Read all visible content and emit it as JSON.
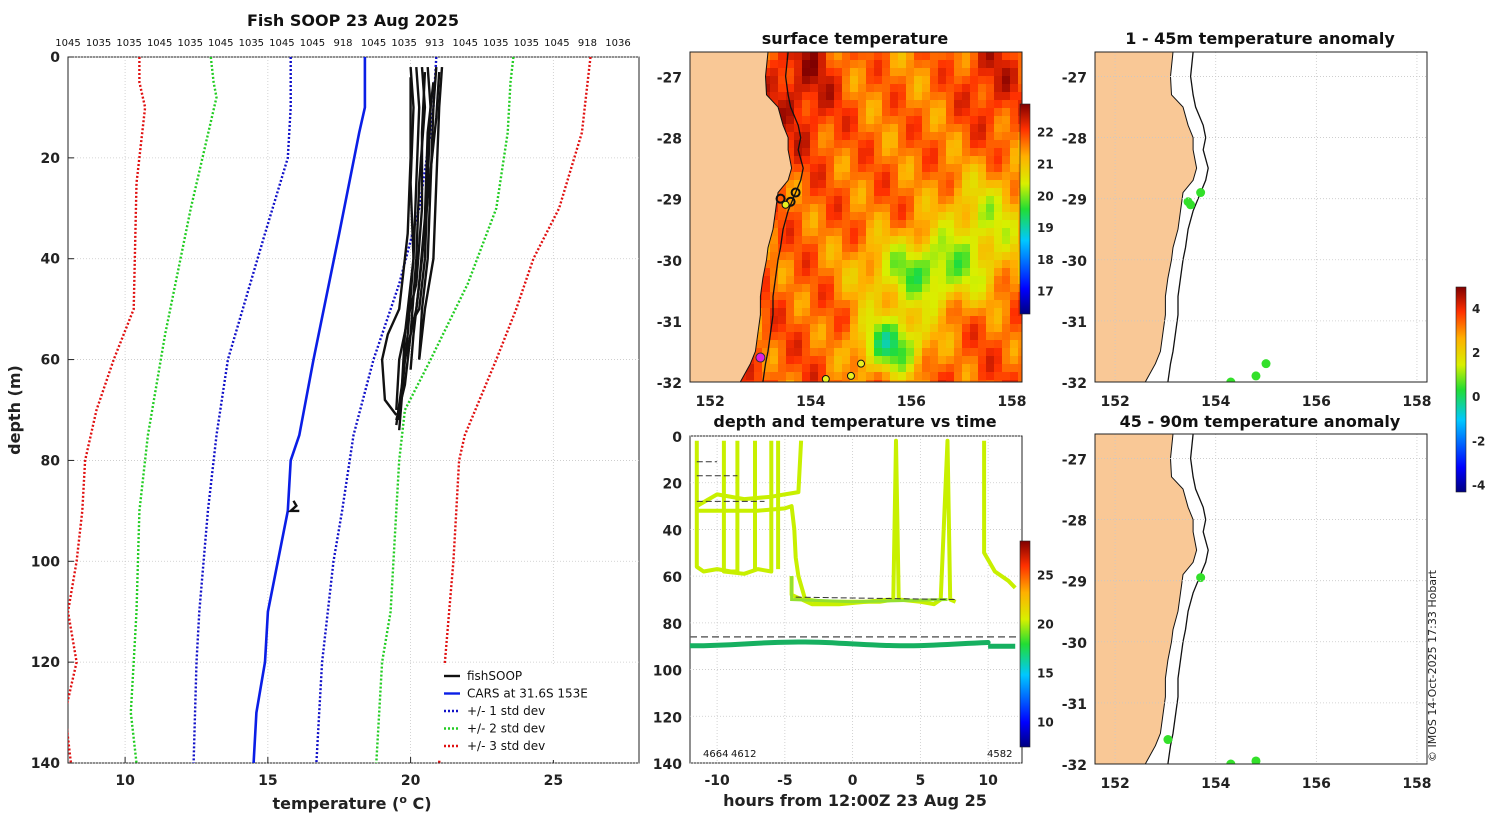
{
  "copyright": "© IMOS 14-Oct-2025 17:33 Hobart",
  "colors": {
    "land": "#f9c896",
    "grid": "#c8c8c8",
    "black": "#111111",
    "cars": "#0a1ee6",
    "std1": "#1010c8",
    "std2": "#22cc22",
    "std3": "#e01010",
    "track_profile": "#c8f000",
    "track_bottom": "#16b060",
    "magenta": "#e020e0",
    "yellow_dot": "#e8f020",
    "anom_green": "#33e02a"
  },
  "chart_data": [
    {
      "id": "profile",
      "type": "line",
      "title": "Fish SOOP 23 Aug 2025",
      "xlabel": "temperature (o C)",
      "ylabel": "depth (m)",
      "xlim": [
        8,
        28
      ],
      "ylim": [
        0,
        140
      ],
      "xticks": [
        "10",
        "15",
        "20",
        "25"
      ],
      "yticks": [
        "0",
        "20",
        "40",
        "60",
        "80",
        "100",
        "120",
        "140"
      ],
      "top_labels": [
        "1045",
        "1035",
        "1035",
        "1045",
        "1035",
        "1045",
        "1035",
        "1045",
        "1045",
        "918",
        "1045",
        "1035",
        "913",
        "1045",
        "1035",
        "1035",
        "1045",
        "918",
        "1036"
      ],
      "legend": [
        "fishSOOP",
        "CARS at 31.6S 153E",
        "+/- 1 std dev",
        "+/- 2 std dev",
        "+/- 3 std dev"
      ],
      "series": [
        {
          "name": "CARS at 31.6S 153E",
          "style": "solid",
          "color": "#0a1ee6",
          "points": [
            [
              18.4,
              0
            ],
            [
              18.4,
              10
            ],
            [
              18.2,
              15
            ],
            [
              17.5,
              35
            ],
            [
              16.6,
              60
            ],
            [
              16.1,
              75
            ],
            [
              15.8,
              80
            ],
            [
              15.7,
              90
            ],
            [
              15.0,
              110
            ],
            [
              14.9,
              120
            ],
            [
              14.6,
              130
            ],
            [
              14.5,
              140
            ]
          ]
        },
        {
          "name": "+1 std",
          "style": "dot",
          "color": "#1010c8",
          "points": [
            [
              20.9,
              0
            ],
            [
              20.8,
              10
            ],
            [
              20.7,
              15
            ],
            [
              20.3,
              30
            ],
            [
              19.6,
              45
            ],
            [
              18.7,
              60
            ],
            [
              18.0,
              75
            ],
            [
              17.6,
              90
            ],
            [
              17.3,
              100
            ],
            [
              17.1,
              110
            ],
            [
              16.9,
              120
            ],
            [
              16.8,
              130
            ],
            [
              16.7,
              140
            ]
          ]
        },
        {
          "name": "-1 std",
          "style": "dot",
          "color": "#1010c8",
          "points": [
            [
              15.8,
              0
            ],
            [
              15.8,
              10
            ],
            [
              15.7,
              20
            ],
            [
              14.9,
              35
            ],
            [
              13.6,
              60
            ],
            [
              13.2,
              75
            ],
            [
              12.9,
              90
            ],
            [
              12.6,
              110
            ],
            [
              12.5,
              120
            ],
            [
              12.4,
              140
            ]
          ]
        },
        {
          "name": "+2 std",
          "style": "dot",
          "color": "#22cc22",
          "points": [
            [
              23.6,
              0
            ],
            [
              23.5,
              5
            ],
            [
              23.4,
              15
            ],
            [
              23.0,
              30
            ],
            [
              22.0,
              45
            ],
            [
              20.7,
              60
            ],
            [
              19.8,
              70
            ],
            [
              19.6,
              80
            ],
            [
              19.5,
              90
            ],
            [
              19.3,
              110
            ],
            [
              19.0,
              120
            ],
            [
              18.9,
              130
            ],
            [
              18.8,
              140
            ]
          ]
        },
        {
          "name": "-2 std",
          "style": "dot",
          "color": "#22cc22",
          "points": [
            [
              13.0,
              0
            ],
            [
              13.1,
              5
            ],
            [
              13.2,
              8
            ],
            [
              12.3,
              30
            ],
            [
              11.4,
              55
            ],
            [
              10.8,
              75
            ],
            [
              10.5,
              90
            ],
            [
              10.4,
              110
            ],
            [
              10.3,
              120
            ],
            [
              10.2,
              130
            ],
            [
              10.4,
              140
            ]
          ]
        },
        {
          "name": "+3 std",
          "style": "dot",
          "color": "#e01010",
          "points": [
            [
              26.3,
              0
            ],
            [
              26.2,
              5
            ],
            [
              26.0,
              15
            ],
            [
              25.2,
              30
            ],
            [
              24.3,
              40
            ],
            [
              23.7,
              50
            ],
            [
              23.0,
              60
            ],
            [
              21.9,
              75
            ],
            [
              21.7,
              80
            ],
            [
              21.6,
              90
            ],
            [
              21.5,
              100
            ],
            [
              21.2,
              120
            ],
            [
              21.1,
              130
            ],
            [
              21.0,
              140
            ]
          ]
        },
        {
          "name": "-3 std",
          "style": "dot",
          "color": "#e01010",
          "points": [
            [
              10.5,
              0
            ],
            [
              10.5,
              5
            ],
            [
              10.7,
              10
            ],
            [
              10.4,
              25
            ],
            [
              10.3,
              50
            ],
            [
              9.6,
              60
            ],
            [
              9.0,
              70
            ],
            [
              8.6,
              80
            ],
            [
              8.5,
              90
            ],
            [
              8.3,
              100
            ],
            [
              8.0,
              110
            ],
            [
              8.3,
              120
            ],
            [
              7.9,
              130
            ],
            [
              8.1,
              140
            ]
          ]
        }
      ],
      "fish_profiles": [
        [
          [
            20.0,
            2
          ],
          [
            20.1,
            10
          ],
          [
            20.0,
            25
          ],
          [
            20.1,
            40
          ],
          [
            19.8,
            55
          ],
          [
            19.7,
            65
          ],
          [
            19.6,
            72
          ]
        ],
        [
          [
            20.2,
            2
          ],
          [
            20.3,
            10
          ],
          [
            20.2,
            25
          ],
          [
            20.1,
            40
          ],
          [
            19.9,
            55
          ],
          [
            19.7,
            65
          ],
          [
            19.5,
            73
          ]
        ],
        [
          [
            20.4,
            2
          ],
          [
            20.5,
            10
          ],
          [
            20.3,
            25
          ],
          [
            20.2,
            40
          ],
          [
            20.0,
            55
          ],
          [
            19.8,
            65
          ],
          [
            19.5,
            72
          ]
        ],
        [
          [
            20.6,
            2
          ],
          [
            20.7,
            10
          ],
          [
            20.6,
            25
          ],
          [
            20.5,
            40
          ],
          [
            20.3,
            50
          ],
          [
            20.1,
            52
          ]
        ],
        [
          [
            20.9,
            2
          ],
          [
            20.8,
            10
          ],
          [
            20.7,
            25
          ],
          [
            20.6,
            40
          ],
          [
            20.4,
            50
          ],
          [
            20.3,
            60
          ]
        ],
        [
          [
            21.1,
            2
          ],
          [
            21.0,
            10
          ],
          [
            20.9,
            25
          ],
          [
            20.8,
            40
          ],
          [
            20.5,
            50
          ],
          [
            20.3,
            60
          ]
        ],
        [
          [
            20.0,
            4
          ],
          [
            20.0,
            20
          ],
          [
            19.9,
            35
          ],
          [
            19.6,
            50
          ],
          [
            19.2,
            55
          ],
          [
            19.0,
            60
          ],
          [
            19.1,
            68
          ],
          [
            19.5,
            71
          ]
        ],
        [
          [
            20.5,
            3
          ],
          [
            20.4,
            15
          ],
          [
            20.4,
            30
          ],
          [
            20.2,
            45
          ],
          [
            19.9,
            52
          ],
          [
            19.6,
            60
          ],
          [
            19.5,
            70
          ]
        ],
        [
          [
            20.8,
            5
          ],
          [
            20.6,
            15
          ],
          [
            20.5,
            32
          ],
          [
            20.3,
            45
          ],
          [
            20.1,
            55
          ],
          [
            20.0,
            62
          ]
        ],
        [
          [
            21.0,
            3
          ],
          [
            20.9,
            12
          ],
          [
            20.6,
            28
          ],
          [
            20.4,
            40
          ],
          [
            20.2,
            50
          ],
          [
            19.8,
            60
          ],
          [
            19.6,
            74
          ]
        ]
      ],
      "fish_blob": [
        [
          15.9,
          88
        ],
        [
          16.0,
          89
        ],
        [
          15.8,
          90
        ],
        [
          16.1,
          90
        ]
      ]
    },
    {
      "id": "sst",
      "type": "heatmap",
      "title": "surface temperature",
      "xticks": [
        "152",
        "154",
        "156",
        "158"
      ],
      "yticks": [
        "-27",
        "-28",
        "-29",
        "-30",
        "-31",
        "-32"
      ],
      "lon_range": [
        151.6,
        158.2
      ],
      "lat_range": [
        -32.0,
        -26.6
      ],
      "colorbar": {
        "min": 16.3,
        "max": 22.9,
        "ticks": [
          "17",
          "18",
          "19",
          "20",
          "21",
          "22"
        ]
      },
      "markers_yellow": [
        [
          154.3,
          -31.95
        ],
        [
          154.8,
          -31.9
        ],
        [
          155.0,
          -31.7
        ],
        [
          153.5,
          -29.1
        ]
      ],
      "markers_track": [
        [
          153.4,
          -29.0
        ],
        [
          153.7,
          -28.9
        ],
        [
          153.6,
          -29.05
        ]
      ],
      "marker_magenta": [
        153.0,
        -31.6
      ]
    },
    {
      "id": "depth_time",
      "type": "scatter",
      "title": "depth and temperature vs time",
      "xlabel": "hours from 12:00Z 23 Aug 25",
      "xticks": [
        "-10",
        "-5",
        "0",
        "5",
        "10"
      ],
      "yticks": [
        "0",
        "20",
        "40",
        "60",
        "80",
        "100",
        "120",
        "140"
      ],
      "xlim": [
        -12,
        12.5
      ],
      "ylim": [
        0,
        140
      ],
      "dashed_bottom_depth": 86,
      "colorbar": {
        "min": 7.5,
        "max": 28.5,
        "ticks": [
          "10",
          "15",
          "20",
          "25"
        ]
      },
      "bottom_labels": [
        "4664",
        "4612",
        "4582"
      ]
    },
    {
      "id": "anom_top",
      "type": "scatter",
      "title": "1 - 45m temperature anomaly",
      "xticks": [
        "152",
        "154",
        "156",
        "158"
      ],
      "yticks": [
        "-27",
        "-28",
        "-29",
        "-30",
        "-31",
        "-32"
      ],
      "points": [
        [
          153.5,
          -29.1
        ],
        [
          153.45,
          -29.05
        ],
        [
          153.7,
          -28.9
        ],
        [
          154.3,
          -32.0
        ],
        [
          154.8,
          -31.9
        ],
        [
          155.0,
          -31.7
        ]
      ]
    },
    {
      "id": "anom_bottom",
      "type": "scatter",
      "title": "45 - 90m temperature anomaly",
      "xticks": [
        "152",
        "154",
        "156",
        "158"
      ],
      "yticks": [
        "-27",
        "-28",
        "-29",
        "-30",
        "-31",
        "-32"
      ],
      "points": [
        [
          153.7,
          -28.95
        ],
        [
          153.05,
          -31.6
        ],
        [
          154.3,
          -32.0
        ],
        [
          154.8,
          -31.95
        ]
      ],
      "colorbar": {
        "min": -4.3,
        "max": 5.0,
        "ticks": [
          "4",
          "2",
          "0",
          "-2",
          "-4"
        ]
      }
    }
  ]
}
